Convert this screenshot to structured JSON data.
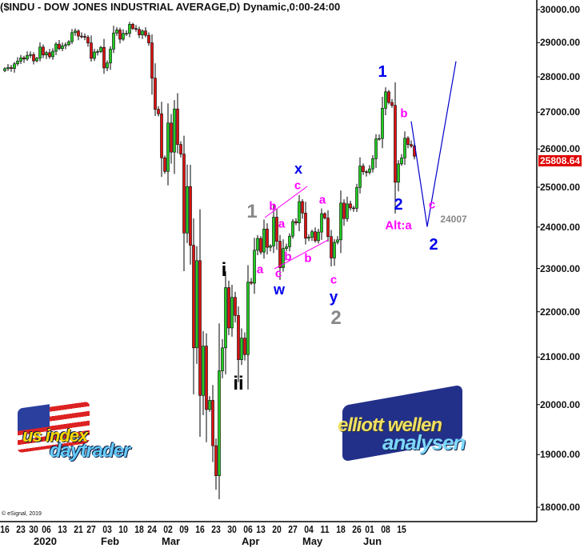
{
  "title": "($INDU - DOW JONES INDUSTRIAL AVERAGE,D) Dynamic,0:00-24:00",
  "copyright": "© eSignal, 2019",
  "last_price": "25808.64",
  "colors": {
    "up": "#22cc22",
    "down": "#dd1111",
    "price_box": "#e00000",
    "wave_blue": "#0000ee",
    "wave_magenta": "#ff00ff",
    "wave_grey": "#888888",
    "projection": "#0000cc"
  },
  "logos": {
    "left": "us index daytrader",
    "right": "elliott wellen analysen"
  },
  "chart_data": {
    "type": "candlestick",
    "yscale": "log",
    "ylim": [
      18000,
      30000
    ],
    "grid": false,
    "y_ticks": [
      "30000.00",
      "29000.00",
      "28000.00",
      "27000.00",
      "26000.00",
      "25000.00",
      "24000.00",
      "23000.00",
      "22000.00",
      "21000.00",
      "20000.00",
      "19000.00",
      "18000.00"
    ],
    "x_ticks": [
      {
        "label": "16",
        "date": "2019-12-16"
      },
      {
        "label": "23",
        "date": "2019-12-23"
      },
      {
        "label": "30",
        "date": "2019-12-30"
      },
      {
        "label": "06",
        "date": "2020-01-06"
      },
      {
        "label": "13",
        "date": "2020-01-13"
      },
      {
        "label": "21",
        "date": "2020-01-21"
      },
      {
        "label": "27",
        "date": "2020-01-27"
      },
      {
        "label": "03",
        "date": "2020-02-03"
      },
      {
        "label": "10",
        "date": "2020-02-10"
      },
      {
        "label": "18",
        "date": "2020-02-18"
      },
      {
        "label": "24",
        "date": "2020-02-24"
      },
      {
        "label": "02",
        "date": "2020-03-02"
      },
      {
        "label": "09",
        "date": "2020-03-09"
      },
      {
        "label": "16",
        "date": "2020-03-16"
      },
      {
        "label": "23",
        "date": "2020-03-23"
      },
      {
        "label": "30",
        "date": "2020-03-30"
      },
      {
        "label": "06",
        "date": "2020-04-06"
      },
      {
        "label": "13",
        "date": "2020-04-13"
      },
      {
        "label": "20",
        "date": "2020-04-20"
      },
      {
        "label": "27",
        "date": "2020-04-27"
      },
      {
        "label": "04",
        "date": "2020-05-04"
      },
      {
        "label": "11",
        "date": "2020-05-11"
      },
      {
        "label": "18",
        "date": "2020-05-18"
      },
      {
        "label": "26",
        "date": "2020-05-26"
      },
      {
        "label": "01",
        "date": "2020-06-01"
      },
      {
        "label": "08",
        "date": "2020-06-08"
      },
      {
        "label": "15",
        "date": "2020-06-15"
      }
    ],
    "month_labels": [
      {
        "label": "2020",
        "date": "2020-01-02"
      },
      {
        "label": "Feb",
        "date": "2020-02-03"
      },
      {
        "label": "Mar",
        "date": "2020-03-02"
      },
      {
        "label": "Apr",
        "date": "2020-04-06"
      },
      {
        "label": "May",
        "date": "2020-05-04"
      },
      {
        "label": "Jun",
        "date": "2020-06-01"
      }
    ],
    "dates": [
      "2019-12-16",
      "2019-12-17",
      "2019-12-18",
      "2019-12-19",
      "2019-12-20",
      "2019-12-23",
      "2019-12-24",
      "2019-12-26",
      "2019-12-27",
      "2019-12-30",
      "2019-12-31",
      "2020-01-02",
      "2020-01-03",
      "2020-01-06",
      "2020-01-07",
      "2020-01-08",
      "2020-01-09",
      "2020-01-10",
      "2020-01-13",
      "2020-01-14",
      "2020-01-15",
      "2020-01-16",
      "2020-01-17",
      "2020-01-21",
      "2020-01-22",
      "2020-01-23",
      "2020-01-24",
      "2020-01-27",
      "2020-01-28",
      "2020-01-29",
      "2020-01-30",
      "2020-01-31",
      "2020-02-03",
      "2020-02-04",
      "2020-02-05",
      "2020-02-06",
      "2020-02-07",
      "2020-02-10",
      "2020-02-11",
      "2020-02-12",
      "2020-02-13",
      "2020-02-14",
      "2020-02-18",
      "2020-02-19",
      "2020-02-20",
      "2020-02-21",
      "2020-02-24",
      "2020-02-25",
      "2020-02-26",
      "2020-02-27",
      "2020-02-28",
      "2020-03-02",
      "2020-03-03",
      "2020-03-04",
      "2020-03-05",
      "2020-03-06",
      "2020-03-09",
      "2020-03-10",
      "2020-03-11",
      "2020-03-12",
      "2020-03-13",
      "2020-03-16",
      "2020-03-17",
      "2020-03-18",
      "2020-03-19",
      "2020-03-20",
      "2020-03-23",
      "2020-03-24",
      "2020-03-25",
      "2020-03-26",
      "2020-03-27",
      "2020-03-30",
      "2020-03-31",
      "2020-04-01",
      "2020-04-02",
      "2020-04-03",
      "2020-04-06",
      "2020-04-07",
      "2020-04-08",
      "2020-04-09",
      "2020-04-13",
      "2020-04-14",
      "2020-04-15",
      "2020-04-16",
      "2020-04-17",
      "2020-04-20",
      "2020-04-21",
      "2020-04-22",
      "2020-04-23",
      "2020-04-24",
      "2020-04-27",
      "2020-04-28",
      "2020-04-29",
      "2020-04-30",
      "2020-05-01",
      "2020-05-04",
      "2020-05-05",
      "2020-05-06",
      "2020-05-07",
      "2020-05-08",
      "2020-05-11",
      "2020-05-12",
      "2020-05-13",
      "2020-05-14",
      "2020-05-15",
      "2020-05-18",
      "2020-05-19",
      "2020-05-20",
      "2020-05-21",
      "2020-05-22",
      "2020-05-26",
      "2020-05-27",
      "2020-05-28",
      "2020-05-29",
      "2020-06-01",
      "2020-06-02",
      "2020-06-03",
      "2020-06-04",
      "2020-06-05",
      "2020-06-08",
      "2020-06-09",
      "2020-06-10",
      "2020-06-11",
      "2020-06-12",
      "2020-06-15",
      "2020-06-16",
      "2020-06-17",
      "2020-06-18",
      "2020-06-19"
    ],
    "close": [
      28235,
      28267,
      28239,
      28376,
      28455,
      28551,
      28515,
      28621,
      28645,
      28462,
      28538,
      28868,
      28634,
      28703,
      28583,
      28745,
      28956,
      28823,
      28907,
      28940,
      29030,
      29297,
      29348,
      29196,
      29186,
      29160,
      28990,
      28535,
      28723,
      28734,
      28859,
      28256,
      28399,
      28807,
      29290,
      29379,
      29102,
      29276,
      29276,
      29551,
      29423,
      29398,
      29232,
      29348,
      29219,
      28992,
      27961,
      27081,
      26957,
      25766,
      25409,
      26703,
      25917,
      27091,
      26121,
      25865,
      23851,
      25018,
      23553,
      21200,
      23185,
      20189,
      21237,
      19899,
      20087,
      19174,
      18592,
      20704,
      21200,
      22552,
      21637,
      22327,
      21917,
      20944,
      21413,
      21053,
      22680,
      22654,
      23434,
      23720,
      23390,
      23950,
      23505,
      23538,
      24242,
      23650,
      23019,
      23475,
      23516,
      23775,
      24134,
      24101,
      24634,
      24346,
      23724,
      23750,
      23883,
      23664,
      23875,
      24331,
      24222,
      23765,
      23248,
      23625,
      23685,
      24597,
      24207,
      24576,
      24474,
      24465,
      24995,
      25548,
      25401,
      25383,
      25475,
      25742,
      26270,
      26282,
      27111,
      27572,
      27272,
      27190,
      25128,
      25606,
      25763,
      26290,
      26120,
      26080,
      25808.64
    ],
    "projection": [
      {
        "date": "2020-06-18",
        "value": 26750
      },
      {
        "date": "2020-06-25",
        "value": 24007
      },
      {
        "date": "2020-07-07",
        "value": 28450
      }
    ],
    "annotations": [
      {
        "text": "1",
        "color": "blue",
        "size": "big"
      },
      {
        "text": "b",
        "color": "magenta"
      },
      {
        "text": "2",
        "color": "blue",
        "size": "big"
      },
      {
        "text": "Alt:a",
        "color": "magenta"
      },
      {
        "text": "c",
        "color": "magenta"
      },
      {
        "text": "2",
        "color": "blue",
        "size": "big"
      },
      {
        "text": "24007",
        "color": "grey"
      },
      {
        "text": "x",
        "color": "blue"
      },
      {
        "text": "c",
        "color": "magenta"
      },
      {
        "text": "b",
        "color": "magenta"
      },
      {
        "text": "a",
        "color": "magenta"
      },
      {
        "text": "1",
        "color": "grey",
        "size": "big"
      },
      {
        "text": "a",
        "color": "magenta"
      },
      {
        "text": "b",
        "color": "magenta"
      },
      {
        "text": "c",
        "color": "magenta"
      },
      {
        "text": "w",
        "color": "blue"
      },
      {
        "text": "b",
        "color": "magenta"
      },
      {
        "text": "a",
        "color": "magenta"
      },
      {
        "text": "c",
        "color": "magenta"
      },
      {
        "text": "y",
        "color": "blue"
      },
      {
        "text": "2",
        "color": "grey",
        "size": "big"
      },
      {
        "text": "i",
        "color": "black",
        "size": "big"
      },
      {
        "text": "ii",
        "color": "black",
        "size": "big"
      }
    ]
  }
}
